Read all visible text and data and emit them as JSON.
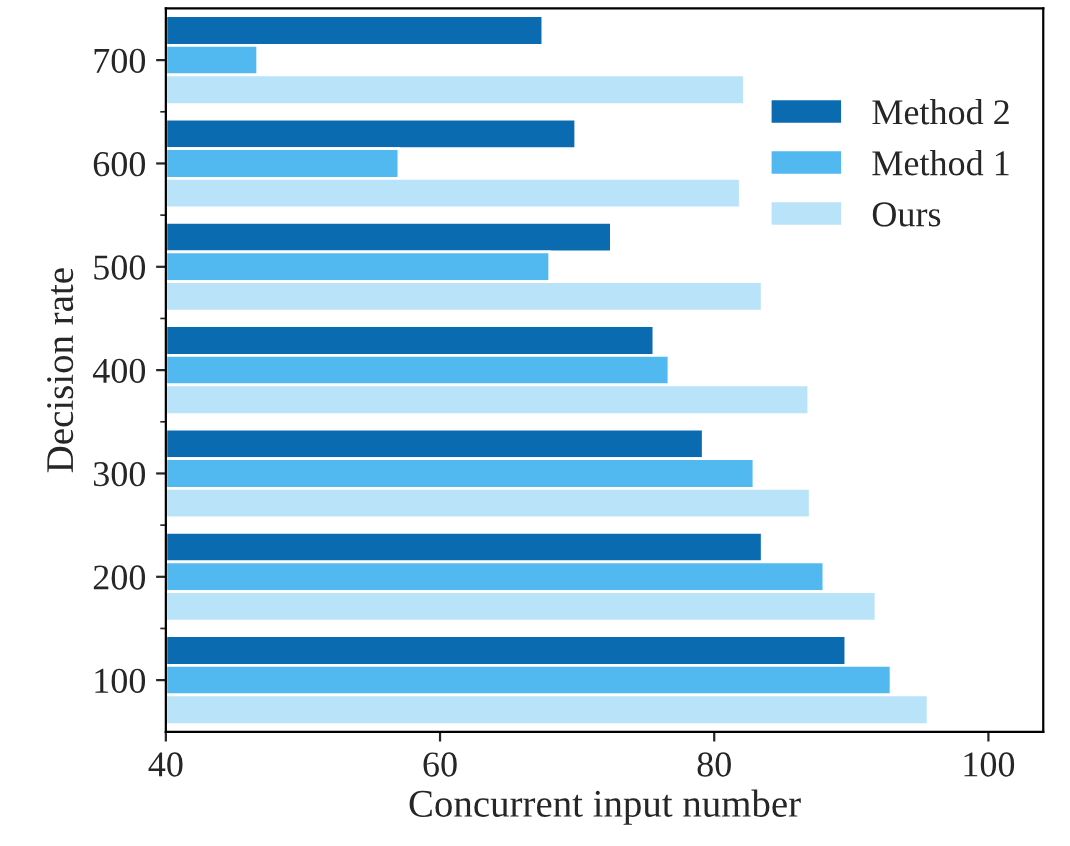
{
  "chart_data": {
    "type": "bar",
    "orientation": "horizontal",
    "xlabel": "Concurrent input number",
    "ylabel": "Decision rate",
    "categories": [
      "700",
      "600",
      "500",
      "400",
      "300",
      "200",
      "100"
    ],
    "series": [
      {
        "name": "Method 2",
        "color": "#0b6bb0",
        "values": [
          67.5,
          69.9,
          72.5,
          75.6,
          79.2,
          83.5,
          89.6
        ]
      },
      {
        "name": "Method 1",
        "color": "#52b8f0",
        "values": [
          46.7,
          57.0,
          68.0,
          76.7,
          82.9,
          88.0,
          92.9
        ]
      },
      {
        "name": "Ours",
        "color": "#b9e3f8",
        "values": [
          82.2,
          81.9,
          83.5,
          86.9,
          87.0,
          91.8,
          95.6
        ]
      }
    ],
    "xlim": [
      40,
      104
    ],
    "xticks": [
      40,
      60,
      80,
      100
    ],
    "legend": "top right",
    "grid": false
  }
}
